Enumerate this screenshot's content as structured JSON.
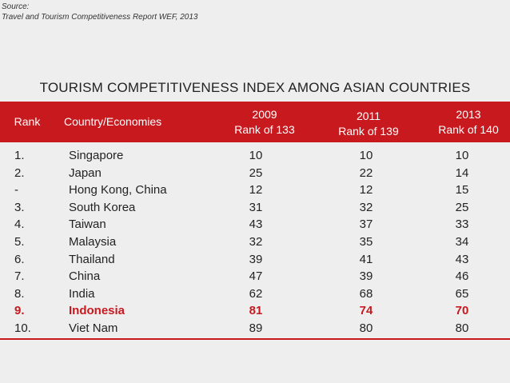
{
  "source": {
    "line1": "Source:",
    "line2": "Travel and Tourism Competitiveness Report WEF, 2013"
  },
  "chart_data": {
    "type": "table",
    "title": "TOURISM COMPETITIVENESS INDEX AMONG ASIAN COUNTRIES",
    "columns": {
      "rank": "Rank",
      "country": "Country/Economies",
      "y2009_year": "2009",
      "y2009_sub": "Rank of 133",
      "y2011_year": "2011",
      "y2011_sub": "Rank of 139",
      "y2013_year": "2013",
      "y2013_sub": "Rank of 140"
    },
    "rows": [
      {
        "rank": "1.",
        "country": "Singapore",
        "y2009": 10,
        "y2011": 10,
        "y2013": 10
      },
      {
        "rank": "2.",
        "country": "Japan",
        "y2009": 25,
        "y2011": 22,
        "y2013": 14
      },
      {
        "rank": "-",
        "country": "Hong Kong, China",
        "y2009": 12,
        "y2011": 12,
        "y2013": 15
      },
      {
        "rank": "3.",
        "country": "South Korea",
        "y2009": 31,
        "y2011": 32,
        "y2013": 25
      },
      {
        "rank": "4.",
        "country": "Taiwan",
        "y2009": 43,
        "y2011": 37,
        "y2013": 33
      },
      {
        "rank": "5.",
        "country": "Malaysia",
        "y2009": 32,
        "y2011": 35,
        "y2013": 34
      },
      {
        "rank": "6.",
        "country": "Thailand",
        "y2009": 39,
        "y2011": 41,
        "y2013": 43
      },
      {
        "rank": "7.",
        "country": "China",
        "y2009": 47,
        "y2011": 39,
        "y2013": 46
      },
      {
        "rank": "8.",
        "country": "India",
        "y2009": 62,
        "y2011": 68,
        "y2013": 65
      },
      {
        "rank": "9.",
        "country": "Indonesia",
        "y2009": 81,
        "y2011": 74,
        "y2013": 70,
        "highlight": true
      },
      {
        "rank": "10.",
        "country": "Viet Nam",
        "y2009": 89,
        "y2011": 80,
        "y2013": 80
      }
    ]
  },
  "colors": {
    "header_bg": "#c8191f",
    "highlight": "#c8191f",
    "background": "#eeeeee"
  }
}
